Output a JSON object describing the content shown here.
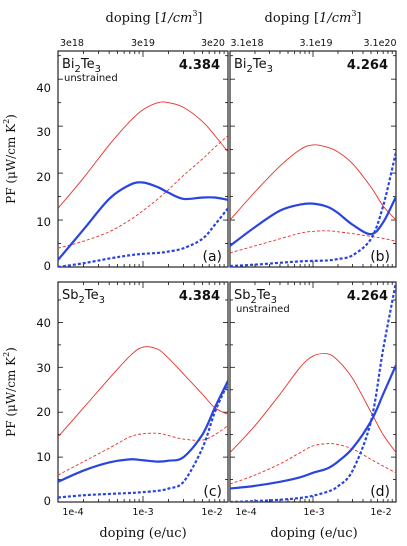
{
  "top_axis": {
    "title_prefix": "doping [",
    "title_unit": "1/cm",
    "title_exp": "3",
    "title_suffix": "]",
    "left_ticks": [
      "3e18",
      "3e19",
      "3e20"
    ],
    "right_ticks": [
      "3.1e18",
      "3.1e19",
      "3.1e20"
    ]
  },
  "bottom_axis": {
    "title": "doping (e/uc)",
    "ticks": [
      "1e-4",
      "1e-3",
      "1e-2"
    ]
  },
  "y_axis": {
    "title_prefix": "PF (μW/cm K",
    "title_exp": "2",
    "title_suffix": ")",
    "ticks": [
      "0",
      "10",
      "20",
      "30",
      "40"
    ]
  },
  "colors": {
    "thin": "#e8312a",
    "thick": "#2a44e0",
    "frame": "#111111"
  },
  "chart_data": [
    {
      "type": "line",
      "panel": "a",
      "material_base": "Bi",
      "material_sub": "2",
      "material_rest": "Te",
      "material_sub2": "3",
      "note": "unstrained",
      "value_label": "4.384",
      "letter": "(a)",
      "xscale": "log",
      "xlim": [
        0.0001,
        0.01
      ],
      "ylim": [
        0,
        46
      ],
      "series": [
        {
          "style": "thin-solid",
          "x": [
            0.0001,
            0.0002,
            0.0004,
            0.0007,
            0.001,
            0.0015,
            0.002,
            0.003,
            0.005,
            0.007,
            0.01
          ],
          "y": [
            12.5,
            19,
            26,
            31,
            33.5,
            35,
            35,
            34,
            31,
            28,
            24.5
          ]
        },
        {
          "style": "thin-dashed",
          "x": [
            0.0001,
            0.0002,
            0.0004,
            0.0007,
            0.001,
            0.0015,
            0.002,
            0.003,
            0.005,
            0.007,
            0.01
          ],
          "y": [
            4,
            5.5,
            7.5,
            10,
            12,
            14.5,
            16.5,
            19.5,
            23,
            25.5,
            28
          ]
        },
        {
          "style": "thick-solid",
          "x": [
            0.0001,
            0.0002,
            0.0004,
            0.0007,
            0.001,
            0.0015,
            0.002,
            0.003,
            0.005,
            0.007,
            0.01
          ],
          "y": [
            1.5,
            8,
            14.5,
            17.5,
            18,
            17,
            15.8,
            14.5,
            14.8,
            14.8,
            14.3
          ]
        },
        {
          "style": "thick-dashed",
          "x": [
            0.0001,
            0.0002,
            0.0004,
            0.0007,
            0.001,
            0.0015,
            0.002,
            0.003,
            0.005,
            0.007,
            0.01
          ],
          "y": [
            0,
            0.8,
            1.8,
            2.5,
            2.8,
            3,
            3.3,
            4,
            6,
            9,
            12.5
          ]
        }
      ]
    },
    {
      "type": "line",
      "panel": "b",
      "material_base": "Bi",
      "material_sub": "2",
      "material_rest": "Te",
      "material_sub2": "3",
      "note": "",
      "value_label": "4.264",
      "letter": "(b)",
      "xscale": "log",
      "xlim": [
        0.0001,
        0.01
      ],
      "ylim": [
        0,
        46
      ],
      "series": [
        {
          "style": "thin-solid",
          "x": [
            0.0001,
            0.0002,
            0.0004,
            0.0007,
            0.001,
            0.0015,
            0.002,
            0.003,
            0.005,
            0.007,
            0.01
          ],
          "y": [
            10,
            16,
            21.5,
            25,
            26,
            25.5,
            24.5,
            22,
            17,
            13,
            10
          ]
        },
        {
          "style": "thin-dashed",
          "x": [
            0.0001,
            0.0002,
            0.0004,
            0.0007,
            0.001,
            0.0015,
            0.002,
            0.003,
            0.005,
            0.007,
            0.01
          ],
          "y": [
            3,
            4.5,
            6,
            7.2,
            7.6,
            7.7,
            7.5,
            7.1,
            6.5,
            6.1,
            5.5
          ]
        },
        {
          "style": "thick-solid",
          "x": [
            0.0001,
            0.0002,
            0.0004,
            0.0007,
            0.001,
            0.0015,
            0.002,
            0.003,
            0.005,
            0.007,
            0.01
          ],
          "y": [
            4.5,
            8.5,
            12,
            13.3,
            13.5,
            12.8,
            11.5,
            9,
            7,
            9.5,
            15
          ]
        },
        {
          "style": "thick-dashed",
          "x": [
            0.0001,
            0.0002,
            0.0004,
            0.0007,
            0.001,
            0.0015,
            0.002,
            0.003,
            0.005,
            0.007,
            0.01
          ],
          "y": [
            0.2,
            0.5,
            0.9,
            1.2,
            1.3,
            1.4,
            1.7,
            2.5,
            6,
            13,
            24.5
          ]
        }
      ]
    },
    {
      "type": "line",
      "panel": "c",
      "material_base": "Sb",
      "material_sub": "2",
      "material_rest": "Te",
      "material_sub2": "3",
      "note": "",
      "value_label": "4.384",
      "letter": "(c)",
      "xscale": "log",
      "xlim": [
        0.0001,
        0.01
      ],
      "ylim": [
        0,
        49
      ],
      "series": [
        {
          "style": "thin-solid",
          "x": [
            0.0001,
            0.0002,
            0.0004,
            0.0007,
            0.001,
            0.0015,
            0.002,
            0.003,
            0.005,
            0.007,
            0.01
          ],
          "y": [
            14.5,
            21,
            27.5,
            32.5,
            34.5,
            34,
            32,
            28.5,
            24,
            21,
            19.5
          ]
        },
        {
          "style": "thin-dashed",
          "x": [
            0.0001,
            0.0002,
            0.0004,
            0.0007,
            0.001,
            0.0015,
            0.002,
            0.003,
            0.005,
            0.007,
            0.01
          ],
          "y": [
            6,
            9,
            12,
            14.5,
            15.2,
            15.3,
            14.8,
            14,
            13.8,
            15,
            17
          ]
        },
        {
          "style": "thick-solid",
          "x": [
            0.0001,
            0.0002,
            0.0004,
            0.0007,
            0.001,
            0.0015,
            0.002,
            0.003,
            0.005,
            0.007,
            0.01
          ],
          "y": [
            4.5,
            7,
            8.8,
            9.5,
            9.3,
            9,
            9.2,
            10,
            15,
            21,
            27
          ]
        },
        {
          "style": "thick-dashed",
          "x": [
            0.0001,
            0.0002,
            0.0004,
            0.0007,
            0.001,
            0.0015,
            0.002,
            0.003,
            0.005,
            0.007,
            0.01
          ],
          "y": [
            1,
            1.5,
            1.8,
            2,
            2.2,
            2.5,
            3,
            4.5,
            12,
            20,
            26.5
          ]
        }
      ]
    },
    {
      "type": "line",
      "panel": "d",
      "material_base": "Sb",
      "material_sub": "2",
      "material_rest": "Te",
      "material_sub2": "3",
      "note": "unstrained",
      "value_label": "4.264",
      "letter": "(d)",
      "xscale": "log",
      "xlim": [
        0.0001,
        0.01
      ],
      "ylim": [
        0,
        49
      ],
      "series": [
        {
          "style": "thin-solid",
          "x": [
            0.0001,
            0.0002,
            0.0004,
            0.0007,
            0.001,
            0.0015,
            0.002,
            0.003,
            0.005,
            0.007,
            0.01
          ],
          "y": [
            11,
            17,
            24,
            30,
            32.5,
            33,
            31.5,
            27.5,
            20,
            15,
            11
          ]
        },
        {
          "style": "thin-dashed",
          "x": [
            0.0001,
            0.0002,
            0.0004,
            0.0007,
            0.001,
            0.0015,
            0.002,
            0.003,
            0.005,
            0.007,
            0.01
          ],
          "y": [
            4,
            6,
            8.5,
            11,
            12.5,
            13,
            12.8,
            11.8,
            9.5,
            8,
            6.5
          ]
        },
        {
          "style": "thick-solid",
          "x": [
            0.0001,
            0.0002,
            0.0004,
            0.0007,
            0.001,
            0.0015,
            0.002,
            0.003,
            0.005,
            0.007,
            0.01
          ],
          "y": [
            3,
            3.6,
            4.5,
            5.5,
            6.5,
            7.5,
            9,
            12,
            18,
            24,
            30.5
          ]
        },
        {
          "style": "thick-dashed",
          "x": [
            0.0001,
            0.0002,
            0.0004,
            0.0007,
            0.001,
            0.0015,
            0.002,
            0.003,
            0.005,
            0.007,
            0.01
          ],
          "y": [
            0,
            0.2,
            0.5,
            0.9,
            1.4,
            2.3,
            3.5,
            7,
            18,
            34,
            49
          ]
        }
      ]
    }
  ]
}
